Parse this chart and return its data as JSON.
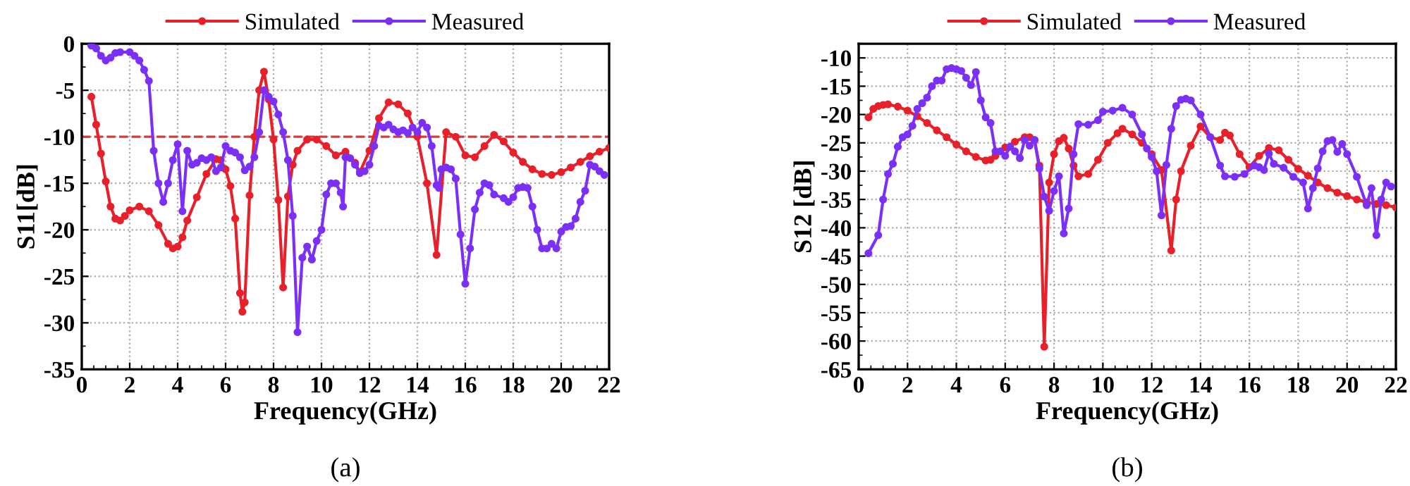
{
  "chart_data": [
    {
      "type": "line",
      "xlabel": "Frequency(GHz)",
      "ylabel": "S11[dB]",
      "xlim": [
        0,
        22
      ],
      "xticks": [
        0,
        2,
        4,
        6,
        8,
        10,
        12,
        14,
        16,
        18,
        20,
        22
      ],
      "ylim": [
        -35,
        0
      ],
      "yticks": [
        -35,
        -30,
        -25,
        -20,
        -15,
        -10,
        -5,
        0
      ],
      "grid": true,
      "legend": "top",
      "marker": "circle",
      "line_style": "solid",
      "ref_lines": [
        {
          "axis": "y",
          "value": -10,
          "color": "#d83a3a",
          "line_style": "dashed"
        }
      ],
      "annotations": [
        "(a)"
      ],
      "series": [
        {
          "name": "Simulated",
          "color": "#e8202a",
          "x": [
            0.4,
            0.6,
            0.8,
            1.0,
            1.2,
            1.4,
            1.6,
            1.8,
            2.0,
            2.4,
            2.8,
            3.2,
            3.6,
            3.8,
            4.0,
            4.2,
            4.4,
            4.8,
            5.2,
            5.6,
            5.8,
            6.0,
            6.2,
            6.4,
            6.6,
            6.7,
            6.8,
            7.0,
            7.2,
            7.4,
            7.6,
            7.8,
            8.0,
            8.2,
            8.4,
            8.6,
            8.8,
            9.0,
            9.4,
            9.8,
            10.2,
            10.6,
            11.0,
            11.4,
            11.6,
            12.0,
            12.4,
            12.8,
            13.2,
            13.6,
            14.0,
            14.4,
            14.8,
            15.2,
            15.6,
            16.0,
            16.4,
            16.8,
            17.2,
            17.6,
            18.0,
            18.4,
            18.8,
            19.2,
            19.6,
            20.0,
            20.4,
            20.8,
            21.2,
            21.6,
            22.0
          ],
          "values": [
            -5.7,
            -8.7,
            -11.8,
            -14.8,
            -17.5,
            -18.8,
            -19,
            -18.5,
            -17.9,
            -17.5,
            -18,
            -19.5,
            -21.5,
            -22,
            -21.8,
            -20.8,
            -19,
            -16.5,
            -14,
            -12.4,
            -12.5,
            -13.5,
            -15.3,
            -18.8,
            -26.8,
            -28.8,
            -27.8,
            -16.3,
            -10,
            -5,
            -3,
            -6,
            -10.3,
            -16.8,
            -26.2,
            -16.4,
            -13,
            -11.5,
            -10.3,
            -10.3,
            -11,
            -12,
            -11.6,
            -12.8,
            -13.8,
            -11.5,
            -8,
            -6.3,
            -6.5,
            -7.5,
            -10,
            -15,
            -22.7,
            -9.5,
            -10,
            -12,
            -12.2,
            -11,
            -9.8,
            -10.5,
            -11.7,
            -12.7,
            -13.5,
            -14,
            -14.1,
            -13.8,
            -13.3,
            -12.7,
            -12.1,
            -11.6,
            -11.2
          ]
        },
        {
          "name": "Measured",
          "color": "#7b2ff7",
          "x": [
            0.4,
            0.6,
            0.8,
            1.0,
            1.2,
            1.4,
            1.6,
            2.0,
            2.2,
            2.4,
            2.6,
            2.8,
            3.0,
            3.2,
            3.4,
            3.6,
            3.8,
            4.0,
            4.2,
            4.4,
            4.6,
            4.8,
            5.0,
            5.2,
            5.4,
            5.6,
            5.8,
            6.0,
            6.2,
            6.4,
            6.6,
            6.8,
            7.0,
            7.2,
            7.4,
            7.6,
            7.8,
            8.0,
            8.2,
            8.4,
            8.6,
            8.8,
            9.0,
            9.2,
            9.4,
            9.6,
            9.8,
            10.0,
            10.2,
            10.4,
            10.6,
            10.8,
            10.9,
            11.0,
            11.2,
            11.4,
            11.6,
            11.8,
            12.0,
            12.2,
            12.4,
            12.6,
            12.8,
            13.0,
            13.2,
            13.4,
            13.6,
            13.8,
            14.0,
            14.2,
            14.4,
            14.6,
            14.8,
            14.9,
            15.0,
            15.2,
            15.4,
            15.6,
            15.8,
            16.0,
            16.2,
            16.4,
            16.6,
            16.8,
            17.0,
            17.2,
            17.6,
            17.8,
            18.0,
            18.2,
            18.4,
            18.6,
            18.8,
            19.0,
            19.2,
            19.4,
            19.6,
            19.8,
            20.0,
            20.2,
            20.4,
            20.6,
            20.8,
            21.0,
            21.2,
            21.4,
            21.6,
            21.8
          ],
          "values": [
            -0.2,
            -0.5,
            -1.3,
            -1.8,
            -1.5,
            -1,
            -0.9,
            -0.9,
            -1.3,
            -1.8,
            -2.8,
            -4,
            -11.5,
            -15,
            -17,
            -15,
            -12.5,
            -10.8,
            -18,
            -11.5,
            -13,
            -12.8,
            -12.3,
            -12.5,
            -12.2,
            -13.7,
            -13.3,
            -11,
            -11.5,
            -11.7,
            -12.2,
            -13.6,
            -13.2,
            -12.2,
            -9.5,
            -5,
            -5.7,
            -6.2,
            -7.6,
            -9.5,
            -12.5,
            -18.5,
            -31,
            -23,
            -21.8,
            -23.2,
            -21.2,
            -20,
            -16.2,
            -15,
            -15,
            -16,
            -17.5,
            -12.2,
            -12.3,
            -13,
            -13.9,
            -13.7,
            -13,
            -11,
            -8.8,
            -9,
            -8.7,
            -9.2,
            -9.5,
            -9.3,
            -9.6,
            -9,
            -9.5,
            -8.5,
            -9,
            -11,
            -15.2,
            -15.5,
            -13.5,
            -13.3,
            -13.5,
            -14.5,
            -20.5,
            -25.8,
            -22,
            -17.8,
            -16,
            -15,
            -15.2,
            -16.2,
            -16.6,
            -17,
            -16.5,
            -15.5,
            -15.4,
            -15.5,
            -17.5,
            -20,
            -22,
            -22,
            -21.5,
            -22,
            -20.2,
            -19.7,
            -19.6,
            -18.8,
            -17,
            -15.8,
            -13,
            -13.2,
            -13.7,
            -14.1
          ]
        }
      ]
    },
    {
      "type": "line",
      "xlabel": "Frequency(GHz)",
      "ylabel": "S12 [dB]",
      "xlim": [
        0,
        22
      ],
      "xticks": [
        0,
        2,
        4,
        6,
        8,
        10,
        12,
        14,
        16,
        18,
        20,
        22
      ],
      "ylim": [
        -65,
        -7.5
      ],
      "yticks": [
        -65,
        -60,
        -55,
        -50,
        -45,
        -40,
        -35,
        -30,
        -25,
        -20,
        -15,
        -10
      ],
      "grid": true,
      "legend": "top",
      "marker": "circle",
      "line_style": "solid",
      "annotations": [
        "(b)"
      ],
      "series": [
        {
          "name": "Simulated",
          "color": "#e8202a",
          "x": [
            0.4,
            0.6,
            0.8,
            1.0,
            1.2,
            1.6,
            2.0,
            2.4,
            2.8,
            3.2,
            3.6,
            4.0,
            4.4,
            4.8,
            5.2,
            5.4,
            5.6,
            6.0,
            6.4,
            6.8,
            7.0,
            7.2,
            7.4,
            7.6,
            7.8,
            8.0,
            8.2,
            8.4,
            8.6,
            8.8,
            9.0,
            9.4,
            9.8,
            10.2,
            10.6,
            10.8,
            11.2,
            11.6,
            12.0,
            12.4,
            12.8,
            13.0,
            13.2,
            13.6,
            14.0,
            14.4,
            14.8,
            15.0,
            15.2,
            15.6,
            16.0,
            16.4,
            16.8,
            17.2,
            17.6,
            18.0,
            18.4,
            18.8,
            19.2,
            19.6,
            20.0,
            20.4,
            20.8,
            21.2,
            21.6,
            22.0
          ],
          "values": [
            -20.5,
            -19,
            -18.5,
            -18.3,
            -18.2,
            -18.6,
            -19.3,
            -20.3,
            -21.5,
            -22.8,
            -24,
            -25.3,
            -26.5,
            -27.5,
            -28.1,
            -28,
            -27.3,
            -25.8,
            -24.8,
            -24,
            -24,
            -24.5,
            -29,
            -61,
            -32,
            -27,
            -24.7,
            -24.1,
            -26,
            -29,
            -30.9,
            -30.5,
            -28,
            -25,
            -23.3,
            -22.5,
            -23.5,
            -25,
            -27,
            -29.8,
            -44,
            -35,
            -30,
            -25.5,
            -22.1,
            -24,
            -24.5,
            -23.2,
            -23.7,
            -27,
            -29.3,
            -27.3,
            -25.9,
            -26.3,
            -28,
            -29.6,
            -30.8,
            -32,
            -33,
            -33.8,
            -34.4,
            -35,
            -35.5,
            -35.8,
            -36,
            -36.4
          ]
        },
        {
          "name": "Measured",
          "color": "#7b2ff7",
          "x": [
            0.4,
            0.8,
            1.0,
            1.2,
            1.4,
            1.6,
            1.8,
            2.0,
            2.2,
            2.4,
            2.6,
            2.8,
            3.0,
            3.2,
            3.4,
            3.6,
            3.8,
            4.0,
            4.2,
            4.4,
            4.6,
            4.8,
            5.0,
            5.2,
            5.4,
            5.6,
            5.8,
            6.0,
            6.2,
            6.4,
            6.6,
            6.8,
            7.0,
            7.2,
            7.4,
            7.6,
            7.8,
            8.0,
            8.2,
            8.4,
            8.6,
            8.8,
            9.0,
            9.4,
            9.8,
            10.0,
            10.4,
            10.8,
            11.2,
            11.6,
            11.8,
            12.0,
            12.2,
            12.4,
            12.6,
            12.8,
            13.0,
            13.2,
            13.4,
            13.6,
            14.0,
            14.4,
            14.8,
            15.0,
            15.4,
            15.8,
            16.2,
            16.4,
            16.6,
            16.8,
            17.0,
            17.4,
            17.8,
            18.2,
            18.4,
            18.6,
            18.8,
            19.0,
            19.2,
            19.4,
            19.6,
            19.8,
            20.0,
            20.4,
            20.8,
            21.0,
            21.2,
            21.4,
            21.6,
            21.8
          ],
          "values": [
            -44.5,
            -41.3,
            -35,
            -30.5,
            -28.7,
            -25.7,
            -24,
            -23.5,
            -22,
            -19,
            -18,
            -17,
            -15,
            -14,
            -14,
            -12,
            -11.8,
            -12,
            -12.3,
            -13.5,
            -14.8,
            -12.5,
            -17.5,
            -20.5,
            -21.5,
            -26.5,
            -26.5,
            -27.3,
            -25.7,
            -26.5,
            -27.7,
            -24.5,
            -25.5,
            -24.5,
            -29.5,
            -34.5,
            -37,
            -33.5,
            -30.9,
            -41,
            -36.6,
            -27,
            -21.7,
            -21.8,
            -21,
            -19.5,
            -19.3,
            -18.8,
            -20,
            -23.5,
            -26,
            -27.5,
            -30,
            -37.8,
            -28.9,
            -22.5,
            -18.5,
            -17.4,
            -17.2,
            -17.5,
            -20,
            -24,
            -29,
            -30.9,
            -31,
            -30.5,
            -29,
            -29.3,
            -29.8,
            -26.9,
            -28.7,
            -29.4,
            -31,
            -32,
            -36.6,
            -33,
            -29.5,
            -26.5,
            -24.7,
            -24.5,
            -26.6,
            -25.2,
            -27,
            -31,
            -36,
            -33,
            -41.3,
            -35,
            -32,
            -32.7
          ]
        }
      ]
    }
  ]
}
